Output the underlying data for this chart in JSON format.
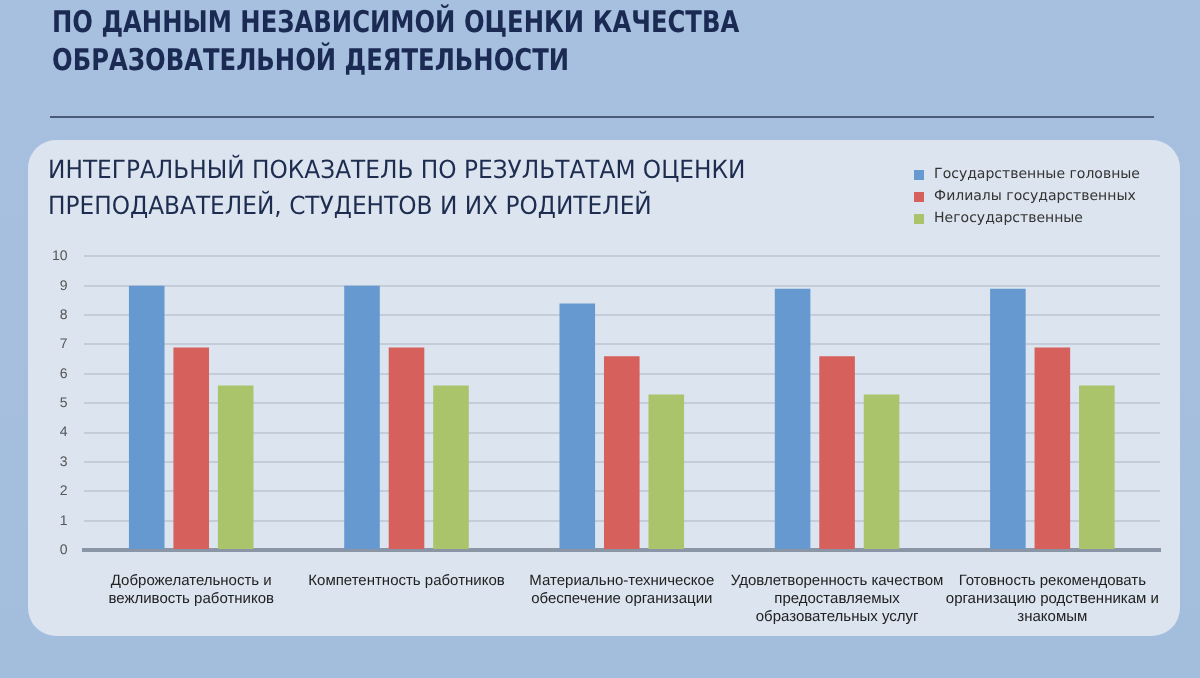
{
  "chart_data": {
    "type": "bar",
    "title": "ПО ДАННЫМ НЕЗАВИСИМОЙ ОЦЕНКИ КАЧЕСТВА ОБРАЗОВАТЕЛЬНОЙ ДЕЯТЕЛЬНОСТИ",
    "subtitle": "ИНТЕГРАЛЬНЫЙ ПОКАЗАТЕЛЬ ПО РЕЗУЛЬТАТАМ ОЦЕНКИ ПРЕПОДАВАТЕЛЕЙ, СТУДЕНТОВ И ИХ РОДИТЕЛЕЙ",
    "categories": [
      "Доброжелательность и вежливость работников",
      "Компетентность работников",
      "Материально-техническое обеспечение организации",
      "Удовлетворенность качеством предоставляемых образовательных услуг",
      "Готовность рекомендовать организацию родственникам и знакомым"
    ],
    "series": [
      {
        "name": "Государственные головные",
        "color": "#6699d0",
        "values": [
          9,
          9,
          8.4,
          8.9,
          8.9
        ]
      },
      {
        "name": "Филиалы государственных",
        "color": "#d6615c",
        "values": [
          6.9,
          6.9,
          6.6,
          6.6,
          6.9
        ]
      },
      {
        "name": "Негосударственные",
        "color": "#a9c46a",
        "values": [
          5.6,
          5.6,
          5.3,
          5.3,
          5.6
        ]
      }
    ],
    "ylim": [
      0,
      10
    ],
    "yticks": [
      0,
      1,
      2,
      3,
      4,
      5,
      6,
      7,
      8,
      9,
      10
    ],
    "grid": "y",
    "legend": "top right"
  }
}
